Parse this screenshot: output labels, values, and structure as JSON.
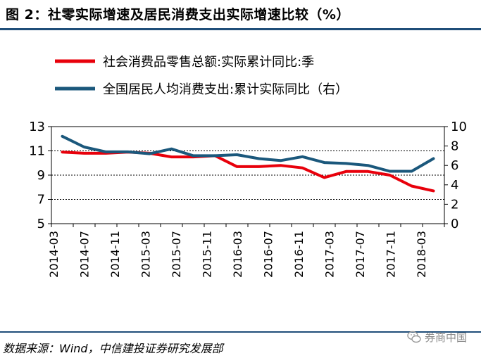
{
  "title": "图 2：社零实际增速及居民消费支出实际增速比较（%）",
  "source": "数据来源：Wind，中信建投证券研究发展部",
  "watermark": "券商中国",
  "chart_data": {
    "type": "line",
    "title": "图 2：社零实际增速及居民消费支出实际增速比较（%）",
    "x": [
      "2014-03",
      "2014-06",
      "2014-09",
      "2014-12",
      "2015-03",
      "2015-06",
      "2015-09",
      "2015-12",
      "2016-03",
      "2016-06",
      "2016-09",
      "2016-12",
      "2017-03",
      "2017-06",
      "2017-09",
      "2017-12",
      "2018-03",
      "2018-06"
    ],
    "x_tick_labels": [
      "2014-03",
      "2014-07",
      "2014-11",
      "2015-03",
      "2015-07",
      "2015-11",
      "2016-03",
      "2016-07",
      "2016-11",
      "2017-03",
      "2017-07",
      "2017-11",
      "2018-03"
    ],
    "left_axis": {
      "ylim": [
        5,
        13
      ],
      "ticks": [
        5,
        7,
        9,
        11,
        13
      ]
    },
    "right_axis": {
      "ylim": [
        0,
        10
      ],
      "ticks": [
        0,
        2,
        4,
        6,
        8,
        10
      ]
    },
    "grid": "horizontal dotted",
    "legend_position": "top",
    "series": [
      {
        "name": "社会消费品零售总额:实际累计同比:季",
        "axis": "left",
        "color": "#e8000b",
        "values": [
          10.9,
          10.8,
          10.8,
          10.9,
          10.8,
          10.5,
          10.5,
          10.6,
          9.7,
          9.7,
          9.8,
          9.6,
          8.8,
          9.3,
          9.3,
          9.0,
          8.1,
          7.7
        ]
      },
      {
        "name": "全国居民人均消费支出:累计实际同比（右）",
        "axis": "right",
        "color": "#1b587c",
        "values": [
          9.0,
          7.9,
          7.4,
          7.4,
          7.2,
          7.7,
          7.0,
          7.0,
          7.1,
          6.7,
          6.5,
          6.9,
          6.3,
          6.2,
          6.0,
          5.4,
          5.4,
          6.7
        ]
      }
    ]
  }
}
